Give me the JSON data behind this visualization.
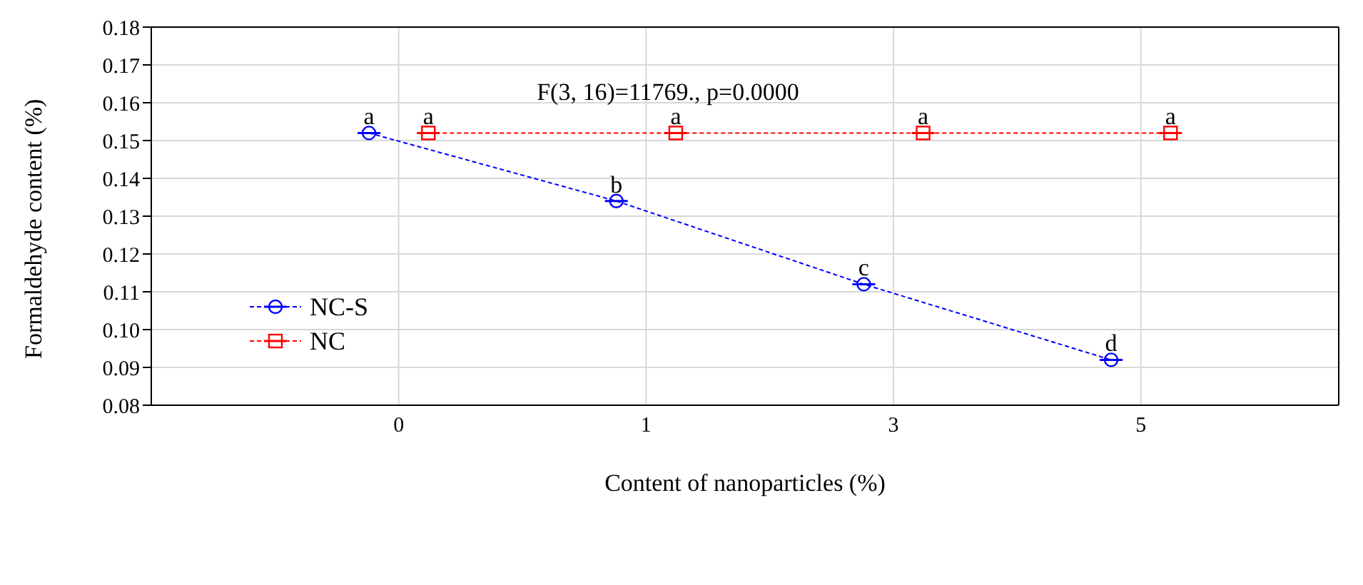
{
  "chart_data": {
    "type": "line",
    "xlabel": "Content of nanoparticles (%)",
    "ylabel": "Formaldehyde content (%)",
    "categories": [
      "0",
      "1",
      "3",
      "5"
    ],
    "ylim": [
      0.08,
      0.18
    ],
    "yticks": [
      0.08,
      0.09,
      {
        "value": 0.1,
        "label": "0.10"
      },
      0.11,
      0.12,
      0.13,
      0.14,
      0.15,
      0.16,
      0.17,
      0.18
    ],
    "grid": true,
    "legend": "left",
    "line_style": "dashed",
    "annotations": [
      "F(3, 16)=11769., p=0.0000"
    ],
    "series": [
      {
        "name": "NC-S",
        "color": "#0000ff",
        "marker": "circle",
        "values": [
          0.152,
          0.134,
          0.112,
          0.092
        ],
        "value_labels": [
          "a",
          "b",
          "c",
          "d"
        ]
      },
      {
        "name": "NC",
        "color": "#ff0000",
        "marker": "square",
        "values": [
          0.152,
          0.152,
          0.152,
          0.152
        ],
        "value_labels": [
          "a",
          "a",
          "a",
          "a"
        ]
      }
    ]
  }
}
